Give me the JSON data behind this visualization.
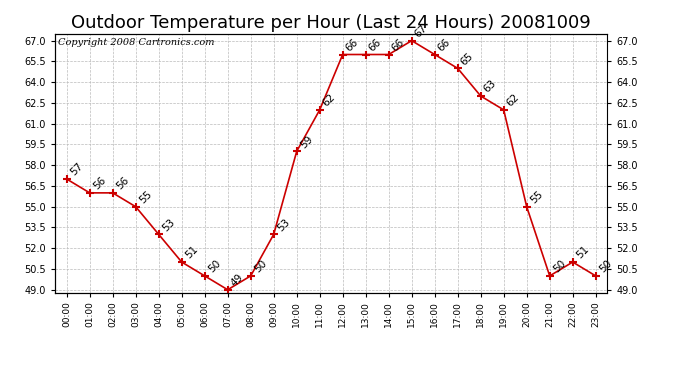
{
  "title": "Outdoor Temperature per Hour (Last 24 Hours) 20081009",
  "copyright": "Copyright 2008 Cartronics.com",
  "hours": [
    "00:00",
    "01:00",
    "02:00",
    "03:00",
    "04:00",
    "05:00",
    "06:00",
    "07:00",
    "08:00",
    "09:00",
    "10:00",
    "11:00",
    "12:00",
    "13:00",
    "14:00",
    "15:00",
    "16:00",
    "17:00",
    "18:00",
    "19:00",
    "20:00",
    "21:00",
    "22:00",
    "23:00"
  ],
  "temps": [
    57,
    56,
    56,
    55,
    53,
    51,
    50,
    49,
    50,
    53,
    59,
    62,
    66,
    66,
    66,
    67,
    66,
    65,
    63,
    62,
    55,
    50,
    51,
    50
  ],
  "line_color": "#cc0000",
  "marker_color": "#cc0000",
  "bg_color": "#ffffff",
  "grid_color": "#bbbbbb",
  "ylim_min": 49.0,
  "ylim_max": 67.0,
  "ytick_step": 1.5,
  "title_fontsize": 13,
  "copyright_fontsize": 7,
  "label_fontsize": 7.5
}
